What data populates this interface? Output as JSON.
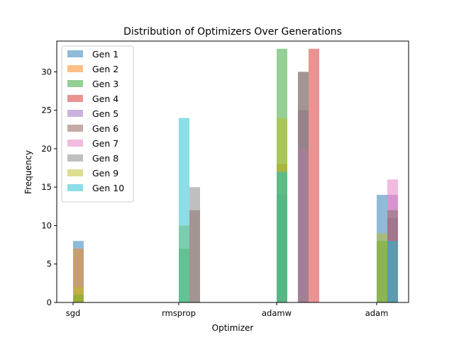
{
  "chart_data": {
    "type": "bar",
    "title": "Distribution of Optimizers Over Generations",
    "xlabel": "Optimizer",
    "ylabel": "Frequency",
    "ylim": [
      0,
      34
    ],
    "yticks": [
      0,
      5,
      10,
      15,
      20,
      25,
      30
    ],
    "categories": [
      "sgd",
      "rmsprop",
      "adamw",
      "adam"
    ],
    "legend_position": "top-left",
    "grid": false,
    "series": [
      {
        "name": "Gen 1",
        "color": "#1f77b4",
        "values": [
          8,
          0,
          14,
          14
        ],
        "slots": [
          0,
          0,
          0,
          0
        ]
      },
      {
        "name": "Gen 2",
        "color": "#ff7f0e",
        "values": [
          7,
          0,
          18,
          12
        ],
        "slots": [
          0,
          0,
          0,
          1
        ]
      },
      {
        "name": "Gen 3",
        "color": "#2ca02c",
        "values": [
          1,
          7,
          33,
          8
        ],
        "slots": [
          0,
          0,
          0,
          0
        ]
      },
      {
        "name": "Gen 4",
        "color": "#d62728",
        "values": [
          0,
          0,
          33,
          11
        ],
        "slots": [
          0,
          0,
          3,
          1
        ]
      },
      {
        "name": "Gen 5",
        "color": "#9467bd",
        "values": [
          0,
          0,
          25,
          14
        ],
        "slots": [
          0,
          0,
          2,
          1
        ]
      },
      {
        "name": "Gen 6",
        "color": "#8c564b",
        "values": [
          0,
          12,
          30,
          11
        ],
        "slots": [
          0,
          1,
          2,
          1
        ]
      },
      {
        "name": "Gen 7",
        "color": "#e377c2",
        "values": [
          0,
          0,
          20,
          16
        ],
        "slots": [
          0,
          0,
          2,
          1
        ]
      },
      {
        "name": "Gen 8",
        "color": "#7f7f7f",
        "values": [
          0,
          15,
          30,
          12
        ],
        "slots": [
          0,
          1,
          2,
          1
        ]
      },
      {
        "name": "Gen 9",
        "color": "#bcbd22",
        "values": [
          2,
          10,
          24,
          9
        ],
        "slots": [
          0,
          0,
          0,
          0
        ]
      },
      {
        "name": "Gen 10",
        "color": "#17becf",
        "values": [
          0,
          24,
          17,
          8
        ],
        "slots": [
          0,
          0,
          0,
          1
        ]
      }
    ]
  }
}
